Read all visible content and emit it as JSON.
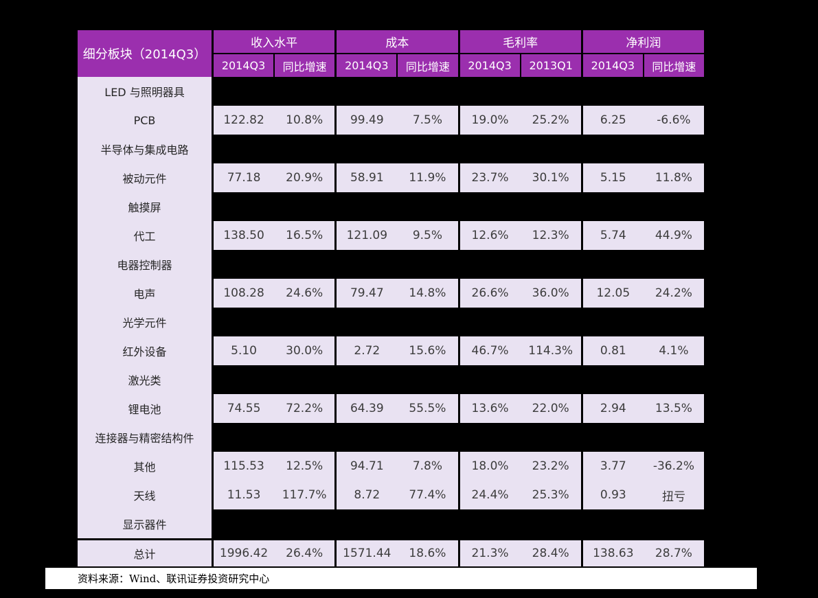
{
  "chart_data": {
    "type": "table",
    "corner_header": "细分板块（2014Q3）",
    "groups": [
      {
        "label": "收入水平",
        "sub": [
          "2014Q3",
          "同比增速"
        ]
      },
      {
        "label": "成本",
        "sub": [
          "2014Q3",
          "同比增速"
        ]
      },
      {
        "label": "毛利率",
        "sub": [
          "2014Q3",
          "2013Q1"
        ]
      },
      {
        "label": "净利润",
        "sub": [
          "2014Q3",
          "同比增速"
        ]
      }
    ],
    "rows": [
      {
        "label": "LED 与照明器具",
        "values": null
      },
      {
        "label": "PCB",
        "values": [
          "122.82",
          "10.8%",
          "99.49",
          "7.5%",
          "19.0%",
          "25.2%",
          "6.25",
          "-6.6%"
        ]
      },
      {
        "label": "半导体与集成电路",
        "values": null
      },
      {
        "label": "被动元件",
        "values": [
          "77.18",
          "20.9%",
          "58.91",
          "11.9%",
          "23.7%",
          "30.1%",
          "5.15",
          "11.8%"
        ]
      },
      {
        "label": "触摸屏",
        "values": null
      },
      {
        "label": "代工",
        "values": [
          "138.50",
          "16.5%",
          "121.09",
          "9.5%",
          "12.6%",
          "12.3%",
          "5.74",
          "44.9%"
        ]
      },
      {
        "label": "电器控制器",
        "values": null
      },
      {
        "label": "电声",
        "values": [
          "108.28",
          "24.6%",
          "79.47",
          "14.8%",
          "26.6%",
          "36.0%",
          "12.05",
          "24.2%"
        ]
      },
      {
        "label": "光学元件",
        "values": null
      },
      {
        "label": "红外设备",
        "values": [
          "5.10",
          "30.0%",
          "2.72",
          "15.6%",
          "46.7%",
          "114.3%",
          "0.81",
          "4.1%"
        ]
      },
      {
        "label": "激光类",
        "values": null
      },
      {
        "label": "锂电池",
        "values": [
          "74.55",
          "72.2%",
          "64.39",
          "55.5%",
          "13.6%",
          "22.0%",
          "2.94",
          "13.5%"
        ]
      },
      {
        "label": "连接器与精密结构件",
        "values": null
      },
      {
        "label": "其他",
        "values": [
          "115.53",
          "12.5%",
          "94.71",
          "7.8%",
          "18.0%",
          "23.2%",
          "3.77",
          "-36.2%"
        ]
      },
      {
        "label": "天线",
        "values": [
          "11.53",
          "117.7%",
          "8.72",
          "77.4%",
          "24.4%",
          "25.3%",
          "0.93",
          "扭亏"
        ]
      },
      {
        "label": "显示器件",
        "values": null
      }
    ],
    "total_row": {
      "label": "总计",
      "values": [
        "1996.42",
        "26.4%",
        "1571.44",
        "18.6%",
        "21.3%",
        "28.4%",
        "138.63",
        "28.7%"
      ]
    }
  },
  "source_note": "资料来源：Wind、联讯证券投资研究中心",
  "colors": {
    "header_purple": "#9B2FAE",
    "cell_lavender": "#E9E2F2",
    "page_background": "#000000",
    "source_background": "#FFFFFF"
  }
}
